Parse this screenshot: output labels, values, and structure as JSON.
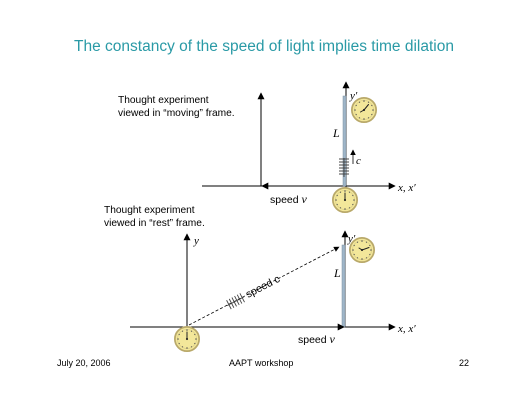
{
  "title": "The constancy of the speed of light implies time dilation",
  "top_panel": {
    "caption_line1": "Thought experiment",
    "caption_line2": "viewed in “moving” frame.",
    "y_label": "y′",
    "x_label": "x, x′",
    "length_label": "L",
    "light_label": "c",
    "speed_text": "speed",
    "speed_symbol": "v"
  },
  "bottom_panel": {
    "caption_line1": "Thought experiment",
    "caption_line2": "viewed in “rest” frame.",
    "y_label": "y",
    "y_prime_label": "y′",
    "x_label": "x, x′",
    "length_label": "L",
    "speed_c_text": "speed c",
    "speed_text": "speed",
    "speed_symbol": "v"
  },
  "footer": {
    "date": "July 20, 2006",
    "event": "AAPT workshop",
    "page": "22"
  },
  "colors": {
    "title": "#2a9aa6",
    "clock_face": "#f3e79a",
    "clock_rim": "#b9a96a",
    "rod": "#9fb6c9"
  },
  "icons": [
    "clock-icon",
    "light-pulse-spring-icon"
  ]
}
